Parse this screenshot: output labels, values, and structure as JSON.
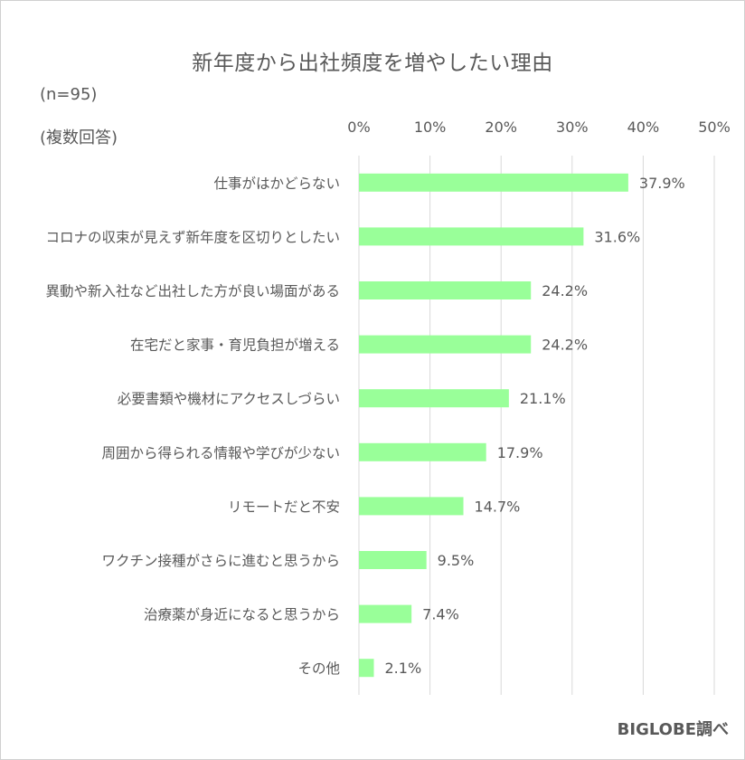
{
  "title": "新年度から出社頻度を増やしたい理由",
  "notes": {
    "sample": "(n=95)",
    "multi": "(複数回答)"
  },
  "credit": "BIGLOBE調べ",
  "colors": {
    "bar": "#99ff99",
    "grid": "#d9d9d9",
    "text": "#595959"
  },
  "chart_data": {
    "type": "bar",
    "orientation": "horizontal",
    "title": "新年度から出社頻度を増やしたい理由",
    "xlim": [
      0,
      50
    ],
    "xticks": [
      0,
      10,
      20,
      30,
      40,
      50
    ],
    "tick_suffix": "%",
    "grid": true,
    "categories": [
      "仕事がはかどらない",
      "コロナの収束が見えず新年度を区切りとしたい",
      "異動や新入社など出社した方が良い場面がある",
      "在宅だと家事・育児負担が増える",
      "必要書類や機材にアクセスしづらい",
      "周囲から得られる情報や学びが少ない",
      "リモートだと不安",
      "ワクチン接種がさらに進むと思うから",
      "治療薬が身近になると思うから",
      "その他"
    ],
    "values": [
      37.9,
      31.6,
      24.2,
      24.2,
      21.1,
      17.9,
      14.7,
      9.5,
      7.4,
      2.1
    ],
    "value_labels": [
      "37.9%",
      "31.6%",
      "24.2%",
      "24.2%",
      "21.1%",
      "17.9%",
      "14.7%",
      "9.5%",
      "7.4%",
      "2.1%"
    ]
  }
}
